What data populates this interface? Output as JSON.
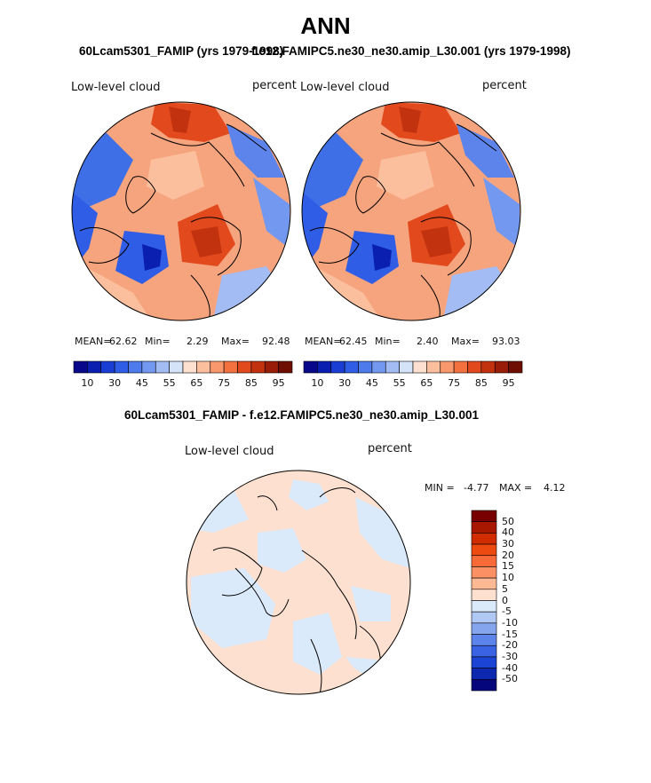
{
  "title": "ANN",
  "panels": [
    {
      "subtitle": "60Lcam5301_FAMIP (yrs 1979-1998)",
      "left_label": "Low-level cloud",
      "right_label": "percent",
      "stats": {
        "mean_label": "MEAN=",
        "mean": "62.62",
        "min_label": "Min=",
        "min": "2.29",
        "max_label": "Max=",
        "max": "92.48"
      }
    },
    {
      "subtitle": "f.e12.FAMIPC5.ne30_ne30.amip_L30.001 (yrs 1979-1998)",
      "left_label": "Low-level cloud",
      "right_label": "percent",
      "stats": {
        "mean_label": "MEAN=",
        "mean": "62.45",
        "min_label": "Min=",
        "min": "2.40",
        "max_label": "Max=",
        "max": "93.03"
      }
    }
  ],
  "abs_colorbar": {
    "colors": [
      "#08088a",
      "#0a1fb0",
      "#1a3ed4",
      "#2f5de6",
      "#4d7bec",
      "#7398f0",
      "#a3bcf4",
      "#d4e3f8",
      "#fde0cf",
      "#fbbf9e",
      "#f8986c",
      "#f3703f",
      "#e24a1e",
      "#c2320f",
      "#981c07",
      "#6e0e02"
    ],
    "tick_labels": [
      "10",
      "30",
      "45",
      "55",
      "65",
      "75",
      "85",
      "95"
    ]
  },
  "diff_panel": {
    "subtitle": "60Lcam5301_FAMIP - f.e12.FAMIPC5.ne30_ne30.amip_L30.001",
    "left_label": "Low-level cloud",
    "right_label": "percent",
    "stats": {
      "min_label": "MIN =",
      "min": "-4.77",
      "max_label": "MAX =",
      "max": "4.12"
    }
  },
  "diff_colorbar": {
    "colors": [
      "#780000",
      "#a81800",
      "#d02c00",
      "#ec4a10",
      "#f86a38",
      "#fb9064",
      "#fdb894",
      "#fde0cf",
      "#dbeafb",
      "#b0c8f4",
      "#85a6ef",
      "#5c84ea",
      "#3963e2",
      "#1c44d4",
      "#0b28ae",
      "#05057c"
    ],
    "tick_labels": [
      "50",
      "40",
      "30",
      "20",
      "15",
      "10",
      "5",
      "0",
      "-5",
      "-10",
      "-15",
      "-20",
      "-30",
      "-40",
      "-50"
    ]
  }
}
